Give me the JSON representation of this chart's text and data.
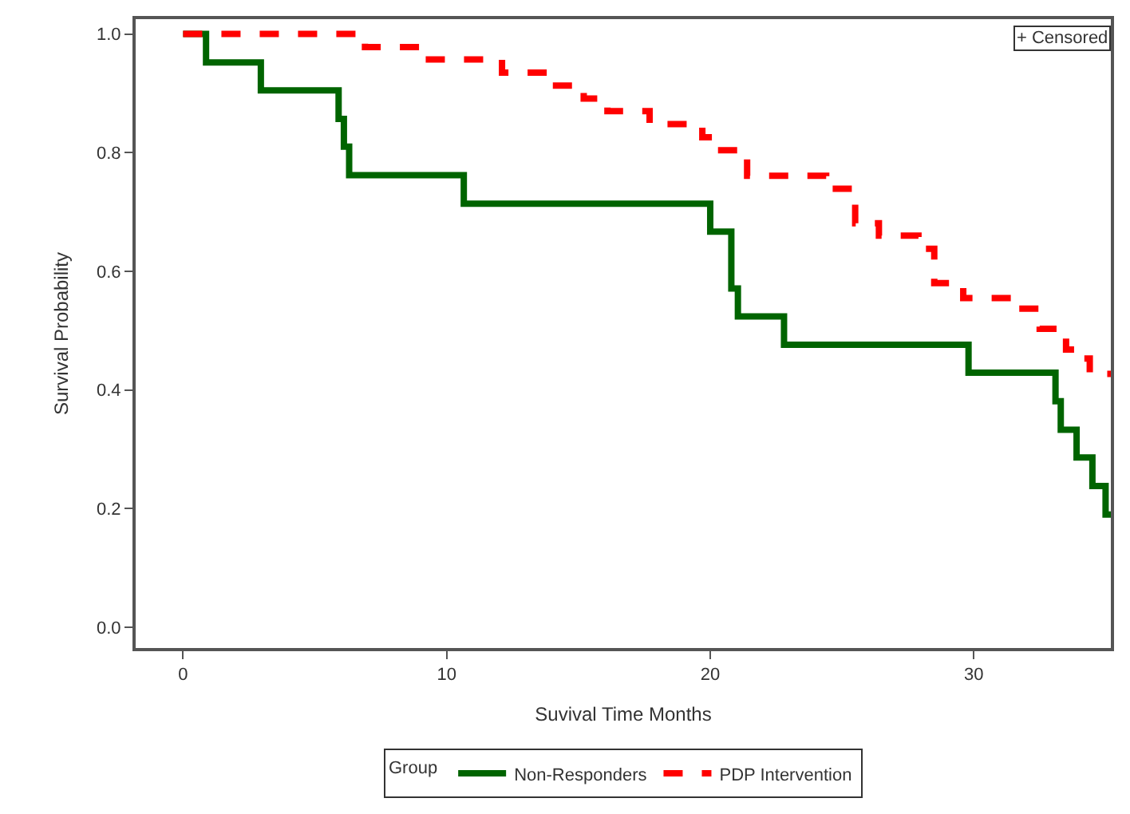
{
  "chart_data": {
    "type": "step",
    "xlabel": "Suvival Time Months",
    "ylabel": "Survival Probability",
    "legend_title": "Group",
    "xlim": [
      -1.8,
      35.2
    ],
    "xticks": [
      0,
      10,
      20,
      30
    ],
    "ylim": [
      -0.035,
      1.025
    ],
    "yticks": [
      {
        "value": 0,
        "label": "0.0"
      },
      0.2,
      0.4,
      0.6,
      0.8,
      {
        "value": 1,
        "label": "1.0"
      }
    ],
    "legend": "bottom",
    "annotations": [
      "+ Censored"
    ],
    "series": [
      {
        "name": "Non-Responders",
        "color": "#006400",
        "line_style": "solid",
        "x": [
          0,
          0.87,
          2.95,
          5.9,
          6.1,
          6.3,
          10.65,
          20.0,
          20.8,
          21.05,
          22.8,
          29.8,
          33.1,
          33.3,
          33.9,
          34.5,
          35.0,
          35.2
        ],
        "values": [
          1.0,
          0.952,
          0.905,
          0.857,
          0.81,
          0.762,
          0.714,
          0.667,
          0.571,
          0.524,
          0.476,
          0.429,
          0.381,
          0.333,
          0.286,
          0.238,
          0.19,
          0.19
        ]
      },
      {
        "name": "PDP Intervention",
        "color": "#ff0000",
        "line_style": "dashed",
        "x": [
          0,
          6.9,
          9.0,
          12.1,
          13.9,
          15.2,
          16.1,
          17.7,
          19.7,
          20.2,
          21.4,
          24.4,
          25.5,
          26.4,
          27.9,
          28.5,
          29.6,
          31.5,
          32.5,
          33.5,
          34.1,
          34.4,
          35.2
        ],
        "values": [
          1.0,
          0.978,
          0.957,
          0.935,
          0.913,
          0.891,
          0.87,
          0.848,
          0.826,
          0.804,
          0.761,
          0.739,
          0.681,
          0.66,
          0.638,
          0.58,
          0.555,
          0.537,
          0.503,
          0.468,
          0.453,
          0.427,
          0.427
        ]
      }
    ]
  }
}
